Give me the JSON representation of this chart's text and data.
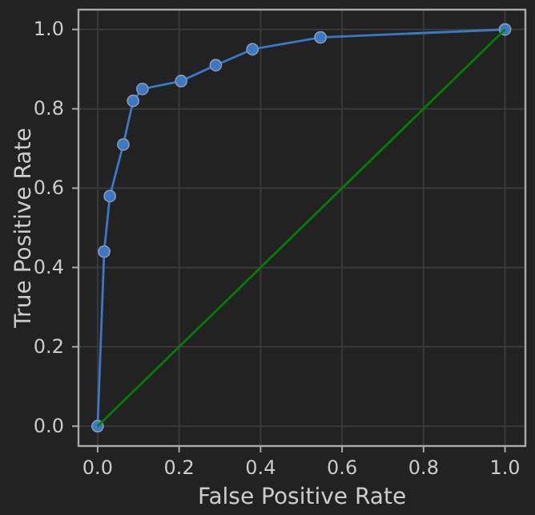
{
  "chart_data": {
    "type": "line",
    "xlabel": "False Positive Rate",
    "ylabel": "True Positive Rate",
    "xlim": [
      -0.047,
      1.05
    ],
    "ylim": [
      -0.05,
      1.05
    ],
    "xticks": [
      {
        "value": 0,
        "label": "0.0"
      },
      {
        "value": 0.2,
        "label": "0.2"
      },
      {
        "value": 0.4,
        "label": "0.4"
      },
      {
        "value": 0.6,
        "label": "0.6"
      },
      {
        "value": 0.8,
        "label": "0.8"
      },
      {
        "value": 1,
        "label": "1.0"
      }
    ],
    "yticks": [
      {
        "value": 0,
        "label": "0.0"
      },
      {
        "value": 0.2,
        "label": "0.2"
      },
      {
        "value": 0.4,
        "label": "0.4"
      },
      {
        "value": 0.6,
        "label": "0.6"
      },
      {
        "value": 0.8,
        "label": "0.8"
      },
      {
        "value": 1,
        "label": "1.0"
      }
    ],
    "grid": true,
    "line_style": "solid",
    "series": [
      {
        "color": "#3a78c8",
        "marker": "circle",
        "x": [
          0,
          0.016,
          0.03,
          0.063,
          0.087,
          0.11,
          0.205,
          0.29,
          0.38,
          0.547,
          1
        ],
        "values": [
          0,
          0.44,
          0.58,
          0.71,
          0.82,
          0.85,
          0.87,
          0.91,
          0.95,
          0.98,
          1
        ]
      },
      {
        "color": "#008000",
        "marker": "none",
        "x": [
          0,
          1
        ],
        "values": [
          0,
          1
        ]
      }
    ]
  }
}
